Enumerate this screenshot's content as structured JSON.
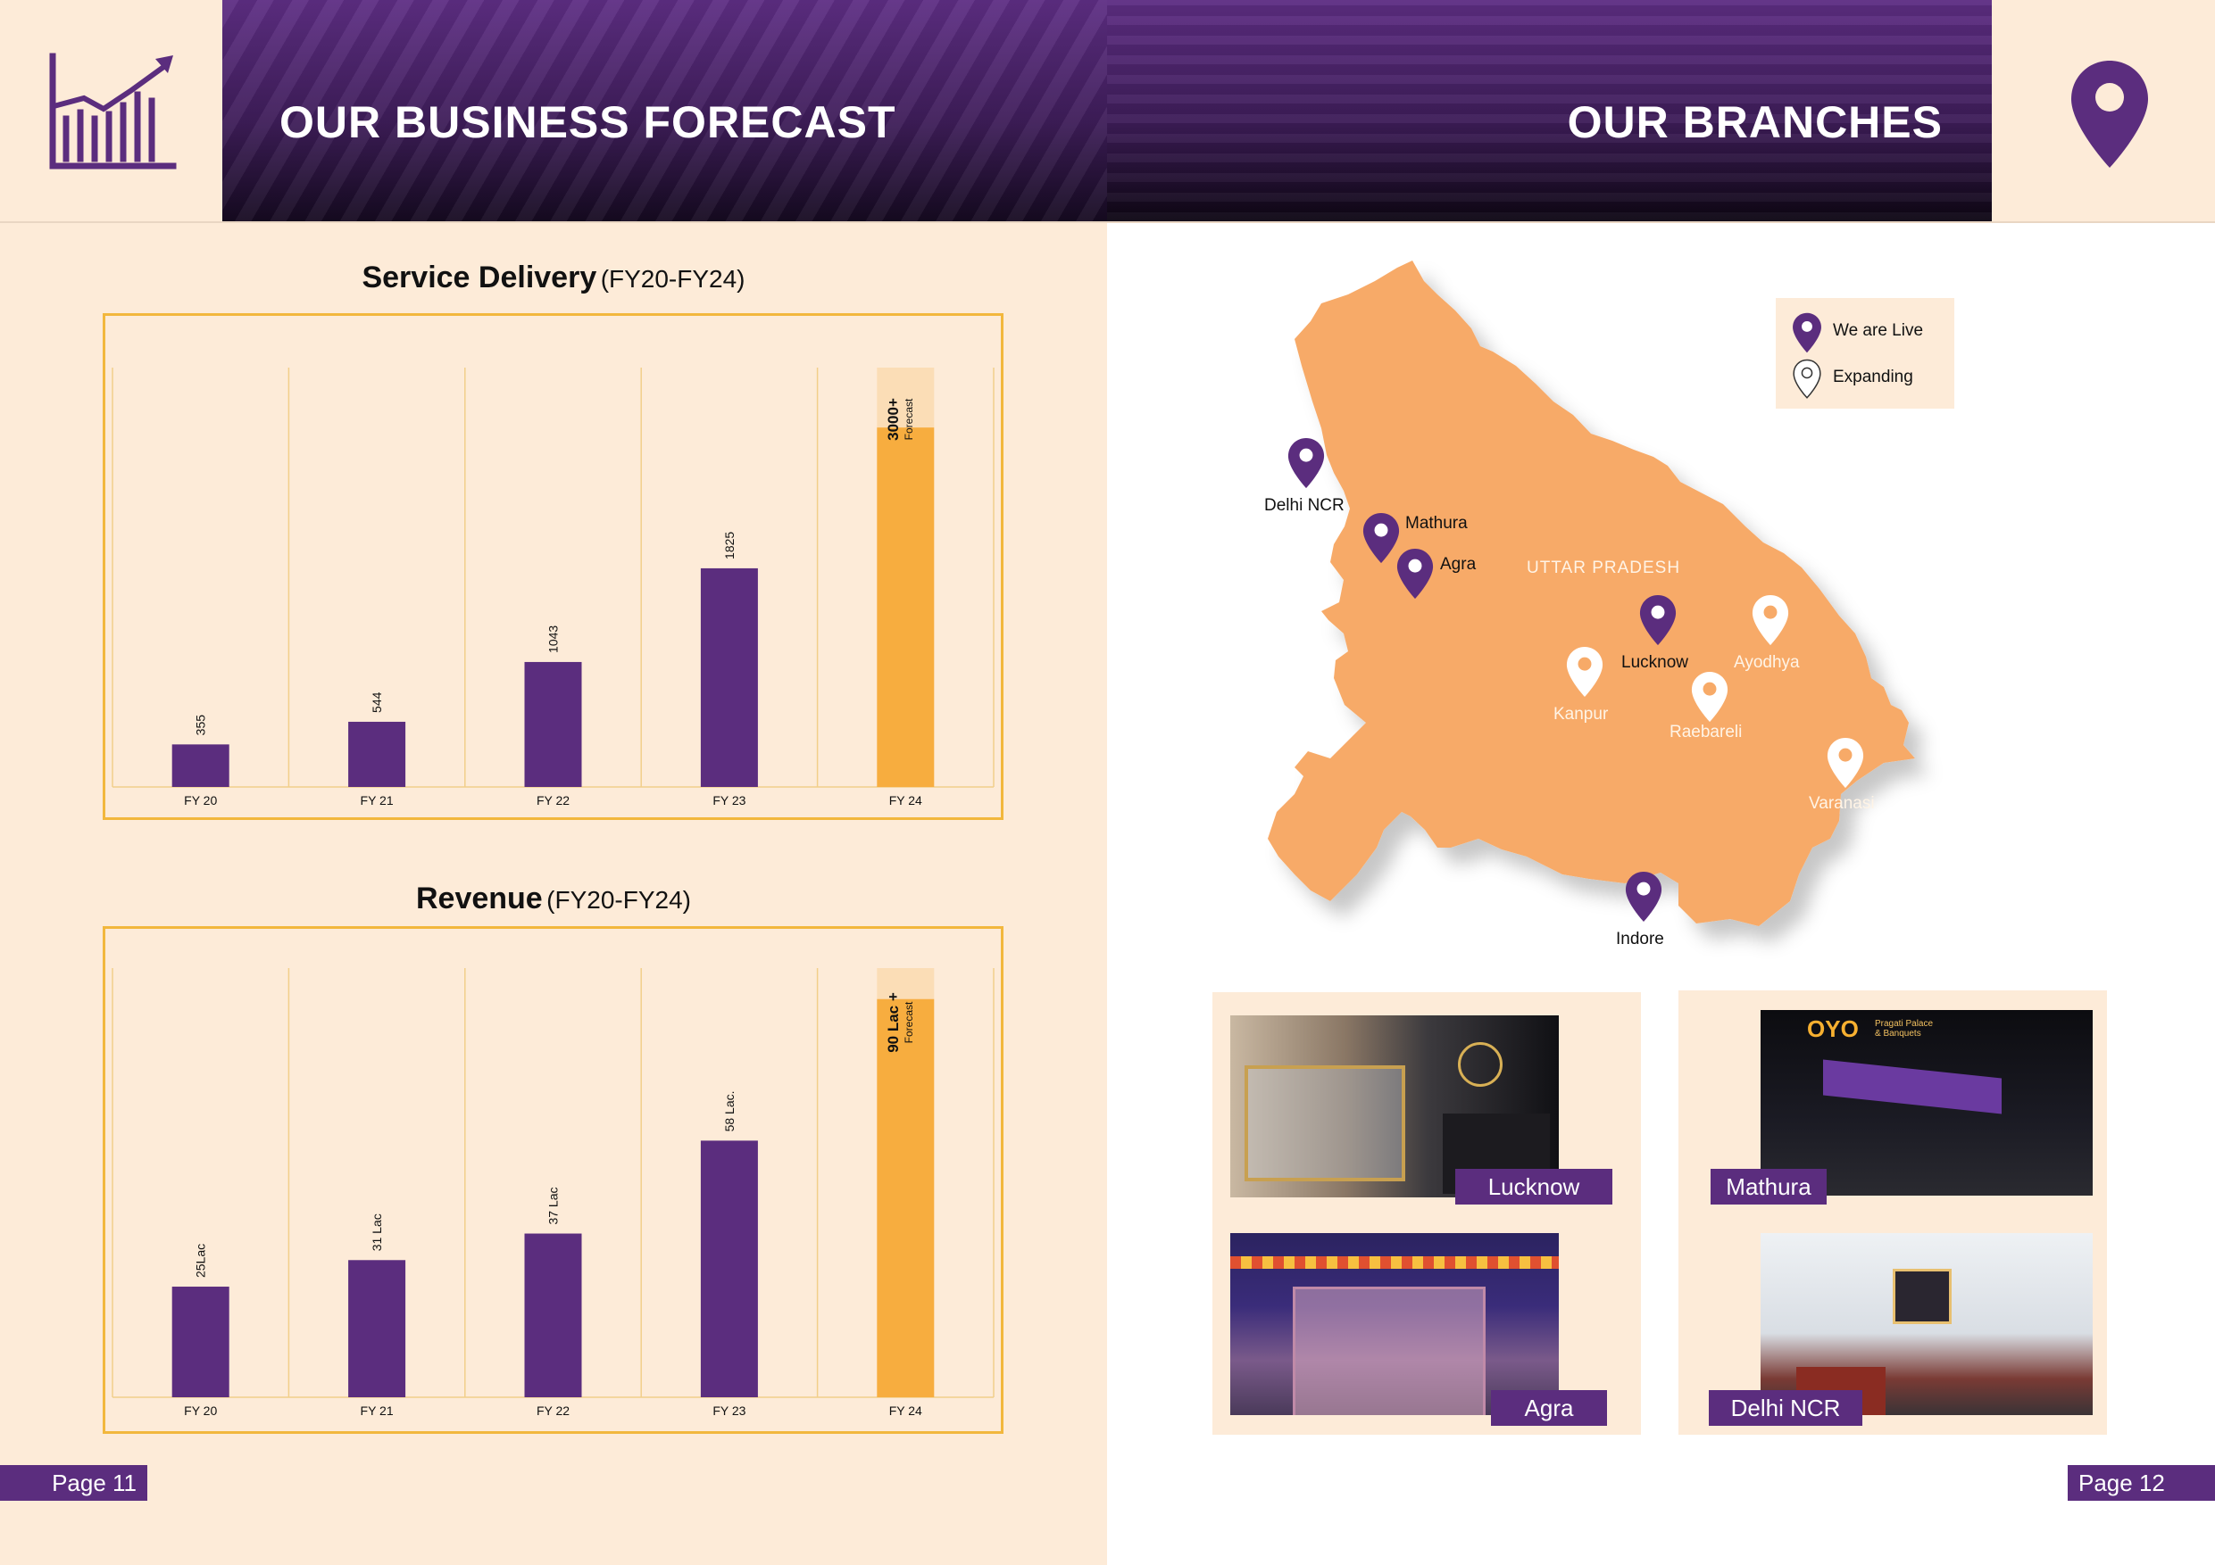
{
  "left": {
    "header_title": "OUR BUSINESS FORECAST",
    "header_icon": "growth-chart-icon",
    "page_label": "Page 11"
  },
  "right": {
    "header_title": "OUR BRANCHES",
    "header_icon": "location-pin-icon",
    "page_label": "Page 12"
  },
  "charts": {
    "service": {
      "title": "Service Delivery",
      "subtitle": "(FY20-FY24)",
      "forecast_value": "3000+",
      "forecast_text": "Forecast"
    },
    "revenue": {
      "title": "Revenue",
      "subtitle": "(FY20-FY24)",
      "forecast_value": "90 Lac +",
      "forecast_text": "Forecast"
    }
  },
  "chart_data": [
    {
      "type": "bar",
      "title": "Service Delivery (FY20-FY24)",
      "categories": [
        "FY 20",
        "FY 21",
        "FY 22",
        "FY 23",
        "FY 24"
      ],
      "values": [
        355,
        544,
        1043,
        1825,
        3000
      ],
      "labels": [
        "355",
        "544",
        "1043",
        "1825",
        "3000+"
      ],
      "ylim": [
        0,
        3500
      ],
      "grid": true,
      "colors": {
        "bar": "#5b2d7e",
        "forecast": "#f7ad3f",
        "grid": "#f2cf8a"
      }
    },
    {
      "type": "bar",
      "title": "Revenue (FY20-FY24)",
      "categories": [
        "FY 20",
        "FY 21",
        "FY 22",
        "FY 23",
        "FY 24"
      ],
      "values": [
        25,
        31,
        37,
        58,
        90
      ],
      "labels": [
        "25Lac",
        "31 Lac",
        "37 Lac",
        "58 Lac.",
        "90 Lac +"
      ],
      "ylim": [
        0,
        97
      ],
      "grid": true,
      "colors": {
        "bar": "#5b2d7e",
        "forecast": "#f7ad3f",
        "grid": "#f2cf8a"
      }
    }
  ],
  "map": {
    "region_label": "UTTAR PRADESH",
    "legend": {
      "live": "We are Live",
      "expanding": "Expanding"
    },
    "cities": {
      "delhi": "Delhi NCR",
      "mathura": "Mathura",
      "agra": "Agra",
      "lucknow": "Lucknow",
      "ayodhya": "Ayodhya",
      "kanpur": "Kanpur",
      "raebareli": "Raebareli",
      "varanasi": "Varanasi",
      "indore": "Indore"
    }
  },
  "photos": {
    "lucknow": "Lucknow",
    "mathura": "Mathura",
    "agra": "Agra",
    "delhi": "Delhi NCR"
  },
  "photo_signage": {
    "oyo": "OYO",
    "oyo_line1": "Pragati Palace",
    "oyo_line2": "& Banquets"
  },
  "colors": {
    "purple": "#5b2d7e",
    "orange": "#f7ad3f",
    "map_orange": "#f7aa68",
    "cream": "#fdebd8"
  }
}
